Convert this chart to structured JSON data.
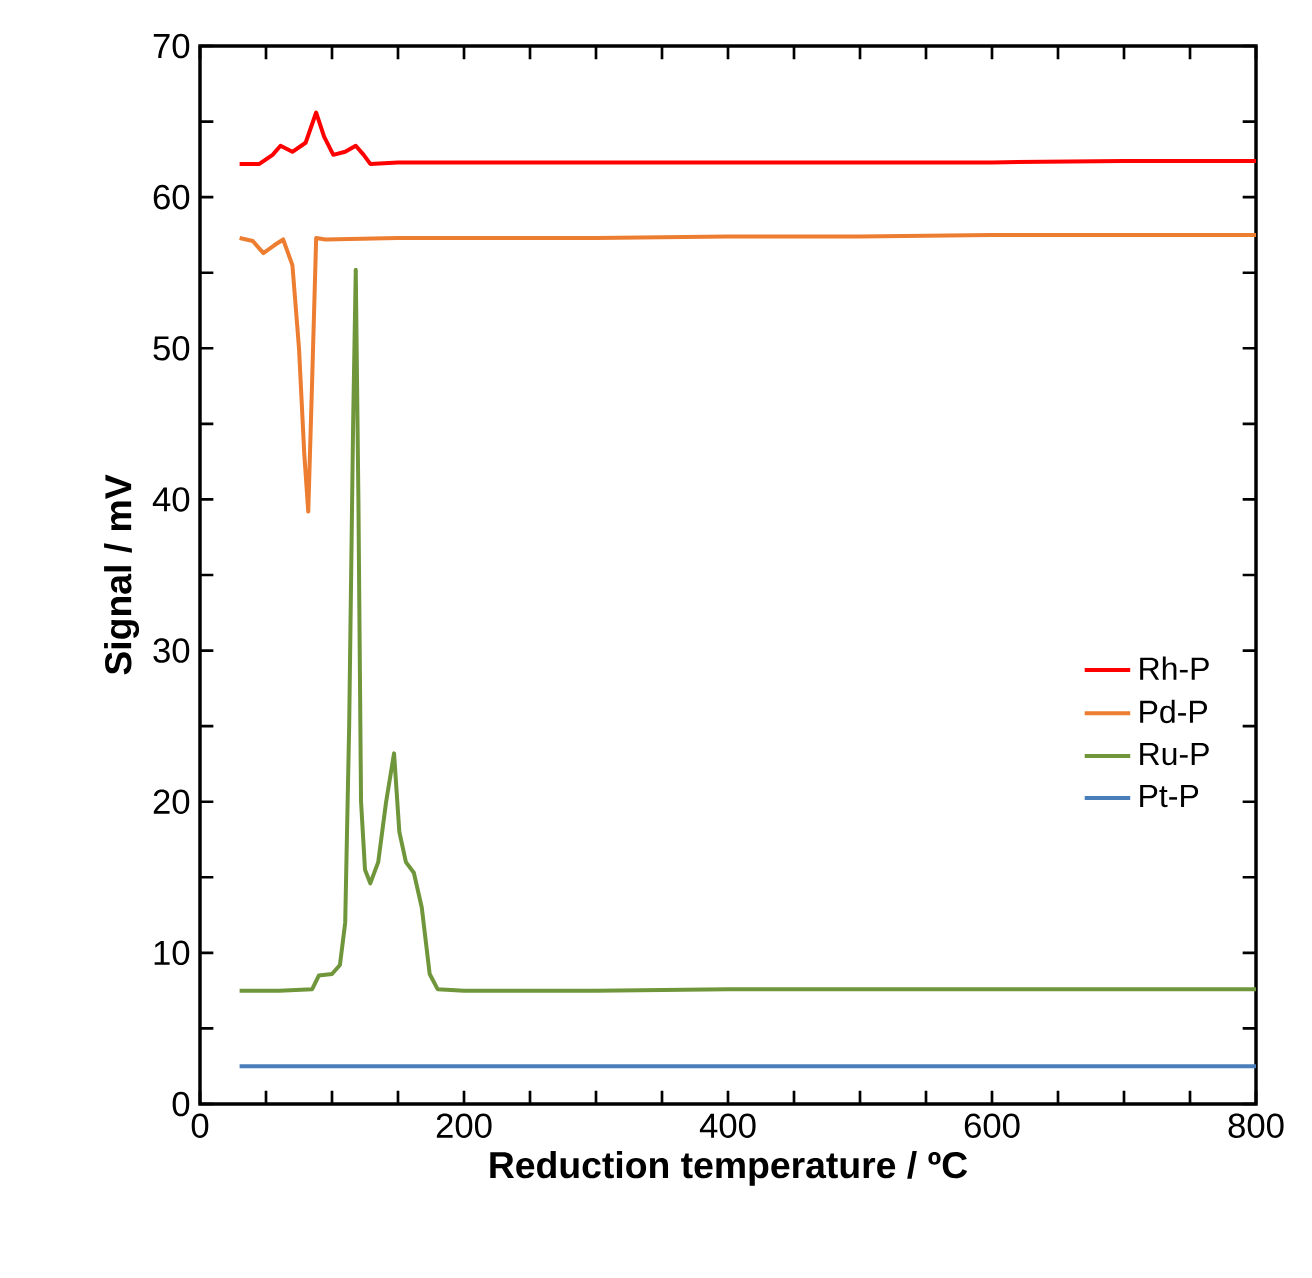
{
  "chart_data": {
    "type": "line",
    "xlabel": "Reduction temperature / ºC",
    "ylabel": "Signal / mV",
    "xlim": [
      0,
      800
    ],
    "ylim": [
      0,
      70
    ],
    "xticks": [
      0,
      {
        "value": 50,
        "label": null
      },
      {
        "value": 100,
        "label": null
      },
      {
        "value": 150,
        "label": null
      },
      200,
      {
        "value": 250,
        "label": null
      },
      {
        "value": 300,
        "label": null
      },
      {
        "value": 350,
        "label": null
      },
      400,
      {
        "value": 450,
        "label": null
      },
      {
        "value": 500,
        "label": null
      },
      {
        "value": 550,
        "label": null
      },
      600,
      {
        "value": 650,
        "label": null
      },
      {
        "value": 700,
        "label": null
      },
      {
        "value": 750,
        "label": null
      },
      800
    ],
    "yticks": [
      0,
      {
        "value": 5,
        "label": null
      },
      10,
      {
        "value": 15,
        "label": null
      },
      20,
      {
        "value": 25,
        "label": null
      },
      30,
      {
        "value": 35,
        "label": null
      },
      40,
      {
        "value": 45,
        "label": null
      },
      50,
      {
        "value": 55,
        "label": null
      },
      60,
      {
        "value": 65,
        "label": null
      },
      70
    ],
    "legend": "right",
    "grid": false,
    "marker": "none",
    "series": [
      {
        "name": "Rh-P",
        "color": "#ff0000",
        "x": [
          30,
          45,
          55,
          61,
          70,
          80,
          88,
          94,
          101,
          110,
          118,
          124,
          129,
          150,
          200,
          300,
          400,
          500,
          600,
          700,
          800
        ],
        "values": [
          62.2,
          62.2,
          62.8,
          63.4,
          63.0,
          63.6,
          65.6,
          64.0,
          62.8,
          63.0,
          63.4,
          62.8,
          62.2,
          62.3,
          62.3,
          62.3,
          62.3,
          62.3,
          62.3,
          62.4,
          62.4
        ]
      },
      {
        "name": "Pd-P",
        "color": "#ed7d31",
        "x": [
          30,
          40,
          48,
          56,
          63,
          70,
          75,
          79,
          82,
          85,
          88,
          95,
          150,
          200,
          300,
          400,
          500,
          600,
          700,
          800
        ],
        "values": [
          57.3,
          57.1,
          56.3,
          56.8,
          57.2,
          55.5,
          50.0,
          43.0,
          39.2,
          48.0,
          57.3,
          57.2,
          57.3,
          57.3,
          57.3,
          57.4,
          57.4,
          57.5,
          57.5,
          57.5
        ]
      },
      {
        "name": "Ru-P",
        "color": "#70963c",
        "x": [
          30,
          60,
          85,
          90,
          100,
          106,
          110,
          113,
          116,
          118,
          120,
          122,
          125,
          129,
          135,
          141,
          147,
          151,
          156,
          162,
          168,
          174,
          180,
          200,
          300,
          400,
          500,
          600,
          700,
          800
        ],
        "values": [
          7.5,
          7.5,
          7.6,
          8.5,
          8.6,
          9.2,
          12.0,
          25.0,
          45.0,
          55.2,
          40.0,
          20.0,
          15.5,
          14.6,
          16.0,
          20.0,
          23.2,
          18.0,
          16.0,
          15.3,
          13.0,
          8.6,
          7.6,
          7.5,
          7.5,
          7.6,
          7.6,
          7.6,
          7.6,
          7.6
        ]
      },
      {
        "name": "Pt-P",
        "color": "#4a7ebb",
        "x": [
          30,
          100,
          200,
          300,
          400,
          500,
          600,
          700,
          800
        ],
        "values": [
          2.5,
          2.5,
          2.5,
          2.5,
          2.5,
          2.5,
          2.5,
          2.5,
          2.5
        ]
      }
    ]
  }
}
